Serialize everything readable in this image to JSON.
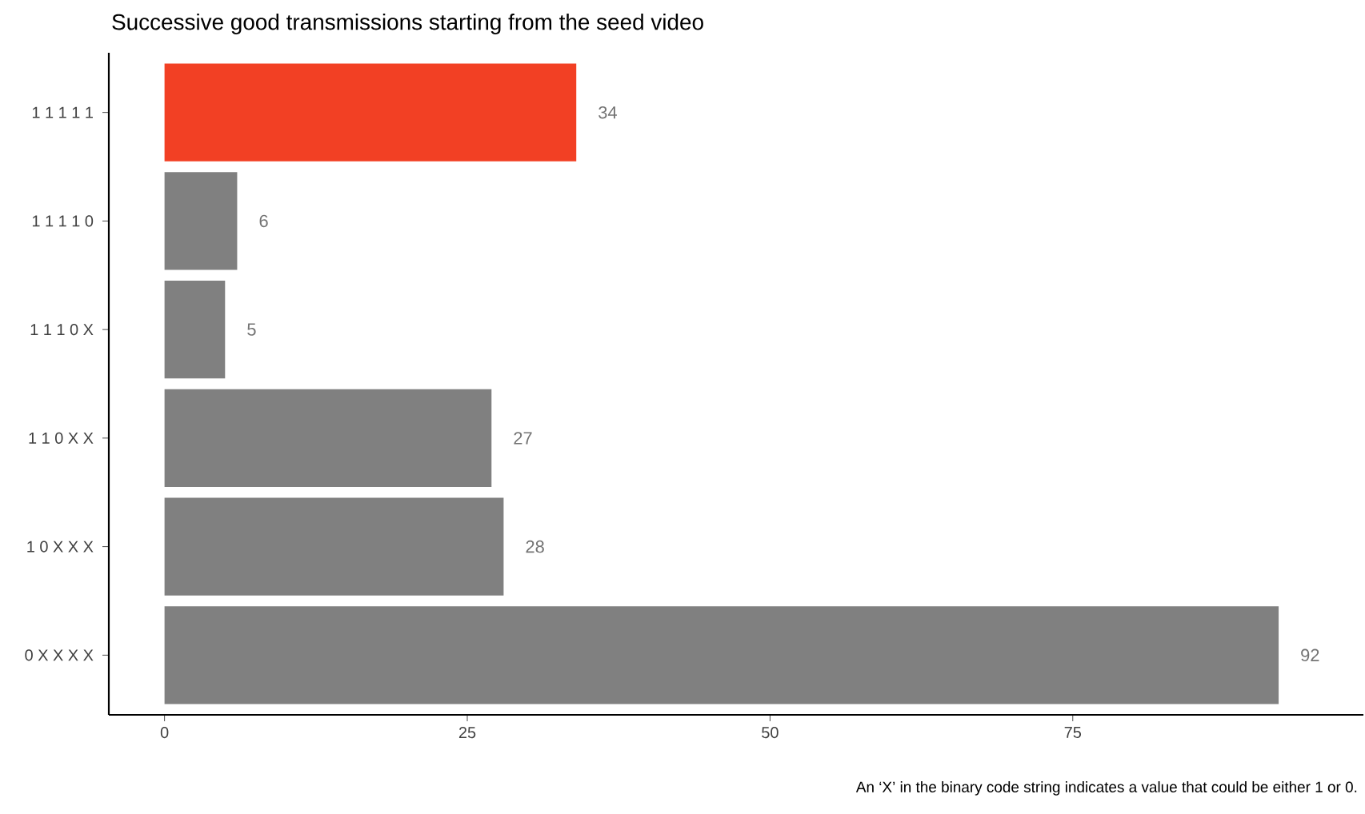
{
  "chart_data": {
    "type": "bar",
    "orientation": "horizontal",
    "title": "Successive good transmissions starting from the seed video",
    "categories": [
      "1 1 1 1 1",
      "1 1 1 1 0",
      "1 1 1 0 X",
      "1 1 0 X X",
      "1 0 X X X",
      "0 X X X X"
    ],
    "values": [
      34,
      6,
      5,
      27,
      28,
      92
    ],
    "colors": [
      "#f24024",
      "#808080",
      "#808080",
      "#808080",
      "#808080",
      "#808080"
    ],
    "data_labels": true,
    "xlim": [
      -4.6,
      99
    ],
    "xticks": [
      0,
      25,
      50,
      75
    ],
    "grid": false,
    "annotations": [
      "An ‘X’ in the binary code string indicates a value that could be either 1 or 0."
    ]
  }
}
